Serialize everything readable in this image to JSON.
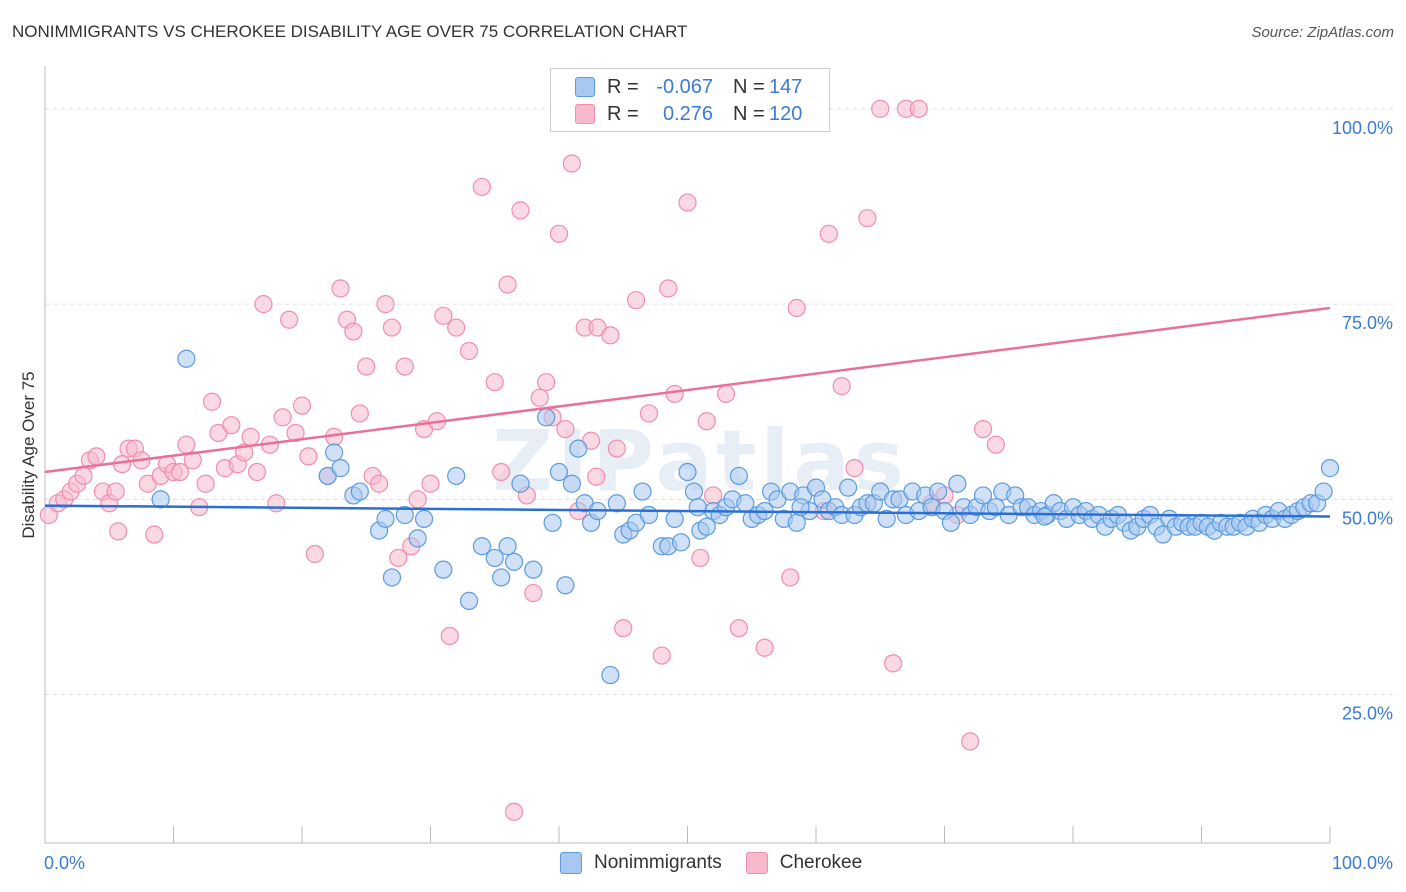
{
  "header": {
    "title": "NONIMMIGRANTS VS CHEROKEE DISABILITY AGE OVER 75 CORRELATION CHART",
    "source": "Source: ZipAtlas.com"
  },
  "legend": {
    "rows": [
      {
        "r_label": "R =",
        "r_value": "-0.067",
        "n_label": "N =",
        "n_value": "147",
        "color": "#a9c8f0"
      },
      {
        "r_label": "R =",
        "r_value": "0.276",
        "n_label": "N =",
        "n_value": "120",
        "color": "#f7b9cc"
      }
    ]
  },
  "bottom_legend": [
    {
      "label": "Nonimmigrants",
      "color": "#a9c8f0"
    },
    {
      "label": "Cherokee",
      "color": "#f7b9cc"
    }
  ],
  "chart_data": {
    "type": "scatter",
    "ylabel": "Disability Age Over 75",
    "xlim": [
      0,
      100
    ],
    "ylim": [
      6,
      106
    ],
    "x_tick_labels": {
      "0": "0.0%",
      "100": "100.0%"
    },
    "y_tick_labels": {
      "25": "25.0%",
      "50": "50.0%",
      "75": "75.0%",
      "100": "100.0%"
    },
    "grid": true,
    "series": [
      {
        "name": "Nonimmigrants",
        "color": "#5b9be0",
        "fill": "#a9c8f0",
        "trend": {
          "x": [
            0,
            100
          ],
          "y": [
            49.2,
            47.8
          ],
          "color": "#2b6fd6"
        },
        "points": [
          [
            9,
            50
          ],
          [
            11,
            68
          ],
          [
            22,
            53
          ],
          [
            22.5,
            56
          ],
          [
            23,
            54
          ],
          [
            24,
            50.5
          ],
          [
            24.5,
            51
          ],
          [
            26,
            46
          ],
          [
            26.5,
            47.5
          ],
          [
            27,
            40
          ],
          [
            28,
            48
          ],
          [
            29,
            45
          ],
          [
            29.5,
            47.5
          ],
          [
            31,
            41
          ],
          [
            32,
            53
          ],
          [
            33,
            37
          ],
          [
            34,
            44
          ],
          [
            35,
            42.5
          ],
          [
            35.5,
            40
          ],
          [
            36,
            44
          ],
          [
            36.5,
            42
          ],
          [
            37,
            52
          ],
          [
            38,
            41
          ],
          [
            39,
            60.5
          ],
          [
            39.5,
            47
          ],
          [
            40,
            53.5
          ],
          [
            40.5,
            39
          ],
          [
            41,
            52
          ],
          [
            41.5,
            56.5
          ],
          [
            42,
            49.5
          ],
          [
            42.5,
            47
          ],
          [
            43,
            48.5
          ],
          [
            44,
            27.5
          ],
          [
            44.5,
            49.5
          ],
          [
            45,
            45.5
          ],
          [
            45.5,
            46
          ],
          [
            46,
            47
          ],
          [
            46.5,
            51
          ],
          [
            47,
            48
          ],
          [
            48,
            44
          ],
          [
            48.5,
            44
          ],
          [
            49,
            47.5
          ],
          [
            49.5,
            44.5
          ],
          [
            50,
            53.5
          ],
          [
            50.5,
            51
          ],
          [
            51,
            46
          ],
          [
            51.5,
            46.5
          ],
          [
            52,
            48.5
          ],
          [
            52.5,
            48
          ],
          [
            53,
            49
          ],
          [
            53.5,
            50
          ],
          [
            54,
            53
          ],
          [
            54.5,
            49.5
          ],
          [
            55,
            47.5
          ],
          [
            55.5,
            48
          ],
          [
            56,
            48.5
          ],
          [
            56.5,
            51
          ],
          [
            57,
            50
          ],
          [
            57.5,
            47.5
          ],
          [
            58,
            51
          ],
          [
            58.5,
            47
          ],
          [
            59,
            50.5
          ],
          [
            59.5,
            48.5
          ],
          [
            60,
            51.5
          ],
          [
            60.5,
            50
          ],
          [
            61,
            48.5
          ],
          [
            61.5,
            49
          ],
          [
            62,
            48
          ],
          [
            62.5,
            51.5
          ],
          [
            63,
            48
          ],
          [
            63.5,
            49
          ],
          [
            64,
            49.5
          ],
          [
            64.5,
            49.5
          ],
          [
            65,
            51
          ],
          [
            65.5,
            47.5
          ],
          [
            66,
            50
          ],
          [
            66.5,
            50
          ],
          [
            67,
            48
          ],
          [
            67.5,
            51
          ],
          [
            68,
            48.5
          ],
          [
            68.5,
            50.5
          ],
          [
            69,
            49
          ],
          [
            69.5,
            51
          ],
          [
            70,
            48.5
          ],
          [
            70.5,
            47
          ],
          [
            71,
            52
          ],
          [
            71.5,
            49
          ],
          [
            72,
            48
          ],
          [
            72.5,
            49
          ],
          [
            73,
            50.5
          ],
          [
            73.5,
            48.5
          ],
          [
            74,
            49
          ],
          [
            74.5,
            51
          ],
          [
            75,
            48
          ],
          [
            75.5,
            50.5
          ],
          [
            76,
            49
          ],
          [
            76.5,
            49
          ],
          [
            77,
            48
          ],
          [
            77.5,
            48.5
          ],
          [
            78,
            48
          ],
          [
            78.5,
            49.5
          ],
          [
            79,
            48.5
          ],
          [
            79.5,
            47.5
          ],
          [
            80,
            49
          ],
          [
            80.5,
            48
          ],
          [
            81,
            48.5
          ],
          [
            81.5,
            47.5
          ],
          [
            82,
            48
          ],
          [
            82.5,
            46.5
          ],
          [
            83,
            47.5
          ],
          [
            83.5,
            48
          ],
          [
            84,
            47
          ],
          [
            84.5,
            46
          ],
          [
            85,
            46.5
          ],
          [
            85.5,
            47.5
          ],
          [
            86,
            48
          ],
          [
            86.5,
            46.5
          ],
          [
            87,
            45.5
          ],
          [
            87.5,
            47.5
          ],
          [
            88,
            46.5
          ],
          [
            88.5,
            47
          ],
          [
            89,
            46.5
          ],
          [
            89.5,
            46.5
          ],
          [
            90,
            47
          ],
          [
            90.5,
            46.5
          ],
          [
            91,
            46
          ],
          [
            91.5,
            47
          ],
          [
            92,
            46.5
          ],
          [
            92.5,
            46.5
          ],
          [
            93,
            47
          ],
          [
            93.5,
            46.5
          ],
          [
            94,
            47.5
          ],
          [
            94.5,
            47
          ],
          [
            95,
            48
          ],
          [
            95.5,
            47.5
          ],
          [
            96,
            48.5
          ],
          [
            96.5,
            47.5
          ],
          [
            97,
            48
          ],
          [
            97.5,
            48.5
          ],
          [
            98,
            49
          ],
          [
            98.5,
            49.5
          ],
          [
            99,
            49.5
          ],
          [
            99.5,
            51
          ],
          [
            100,
            54
          ],
          [
            50.8,
            49
          ],
          [
            58.8,
            49
          ],
          [
            77.8,
            47.8
          ]
        ]
      },
      {
        "name": "Cherokee",
        "color": "#f08db0",
        "fill": "#f7b9cc",
        "trend": {
          "x": [
            0,
            100
          ],
          "y": [
            53.5,
            74.5
          ],
          "color": "#e8709a"
        },
        "points": [
          [
            0.3,
            48
          ],
          [
            1,
            49.5
          ],
          [
            1.5,
            50
          ],
          [
            2,
            51
          ],
          [
            2.5,
            52
          ],
          [
            3,
            53
          ],
          [
            3.5,
            55
          ],
          [
            4,
            55.5
          ],
          [
            4.5,
            51
          ],
          [
            5,
            49.5
          ],
          [
            5.5,
            51
          ],
          [
            6,
            54.5
          ],
          [
            6.5,
            56.5
          ],
          [
            7,
            56.5
          ],
          [
            7.5,
            55
          ],
          [
            8,
            52
          ],
          [
            8.5,
            45.5
          ],
          [
            9,
            53
          ],
          [
            9.5,
            54.5
          ],
          [
            10,
            53.5
          ],
          [
            10.5,
            53.5
          ],
          [
            11,
            57
          ],
          [
            11.5,
            55
          ],
          [
            12,
            49
          ],
          [
            12.5,
            52
          ],
          [
            13,
            62.5
          ],
          [
            13.5,
            58.5
          ],
          [
            14,
            54
          ],
          [
            14.5,
            59.5
          ],
          [
            15,
            54.5
          ],
          [
            15.5,
            56
          ],
          [
            16,
            58
          ],
          [
            16.5,
            53.5
          ],
          [
            17,
            75
          ],
          [
            17.5,
            57
          ],
          [
            18,
            49.5
          ],
          [
            18.5,
            60.5
          ],
          [
            19,
            73
          ],
          [
            19.5,
            58.5
          ],
          [
            20,
            62
          ],
          [
            20.5,
            55.5
          ],
          [
            21,
            43
          ],
          [
            22,
            53
          ],
          [
            22.5,
            58
          ],
          [
            23,
            77
          ],
          [
            23.5,
            73
          ],
          [
            24,
            71.5
          ],
          [
            24.5,
            61
          ],
          [
            25,
            67
          ],
          [
            25.5,
            53
          ],
          [
            26,
            52
          ],
          [
            26.5,
            75
          ],
          [
            27,
            72
          ],
          [
            27.5,
            42.5
          ],
          [
            28,
            67
          ],
          [
            28.5,
            44
          ],
          [
            29,
            50
          ],
          [
            29.5,
            59
          ],
          [
            30,
            52
          ],
          [
            30.5,
            60
          ],
          [
            31,
            73.5
          ],
          [
            31.5,
            32.5
          ],
          [
            32,
            72
          ],
          [
            33,
            69
          ],
          [
            34,
            90
          ],
          [
            35,
            65
          ],
          [
            35.5,
            53.5
          ],
          [
            36,
            77.5
          ],
          [
            36.5,
            10
          ],
          [
            37,
            87
          ],
          [
            37.5,
            50.5
          ],
          [
            38,
            38
          ],
          [
            38.5,
            63
          ],
          [
            39,
            65
          ],
          [
            39.5,
            60.5
          ],
          [
            40,
            84
          ],
          [
            40.5,
            59
          ],
          [
            41,
            93
          ],
          [
            41.5,
            48.5
          ],
          [
            42,
            72
          ],
          [
            42.5,
            57.5
          ],
          [
            43,
            72
          ],
          [
            44,
            71
          ],
          [
            44.5,
            56.5
          ],
          [
            45,
            33.5
          ],
          [
            46,
            75.5
          ],
          [
            47,
            61
          ],
          [
            48,
            30
          ],
          [
            48.5,
            77
          ],
          [
            49,
            63.5
          ],
          [
            50,
            88
          ],
          [
            51,
            42.5
          ],
          [
            51.5,
            60
          ],
          [
            52,
            50.5
          ],
          [
            53,
            63.5
          ],
          [
            54,
            33.5
          ],
          [
            55,
            100
          ],
          [
            56,
            31
          ],
          [
            57,
            100
          ],
          [
            58,
            40
          ],
          [
            58.5,
            74.5
          ],
          [
            59,
            100
          ],
          [
            60,
            100
          ],
          [
            61,
            84
          ],
          [
            62,
            64.5
          ],
          [
            63,
            54
          ],
          [
            64,
            86
          ],
          [
            65,
            100
          ],
          [
            66,
            29
          ],
          [
            67,
            100
          ],
          [
            68,
            100
          ],
          [
            69,
            49.5
          ],
          [
            70,
            50.5
          ],
          [
            71,
            48
          ],
          [
            72,
            19
          ],
          [
            73,
            59
          ],
          [
            74,
            57
          ],
          [
            60.6,
            48.5
          ],
          [
            42.9,
            52.9
          ],
          [
            5.7,
            45.9
          ]
        ]
      }
    ]
  }
}
